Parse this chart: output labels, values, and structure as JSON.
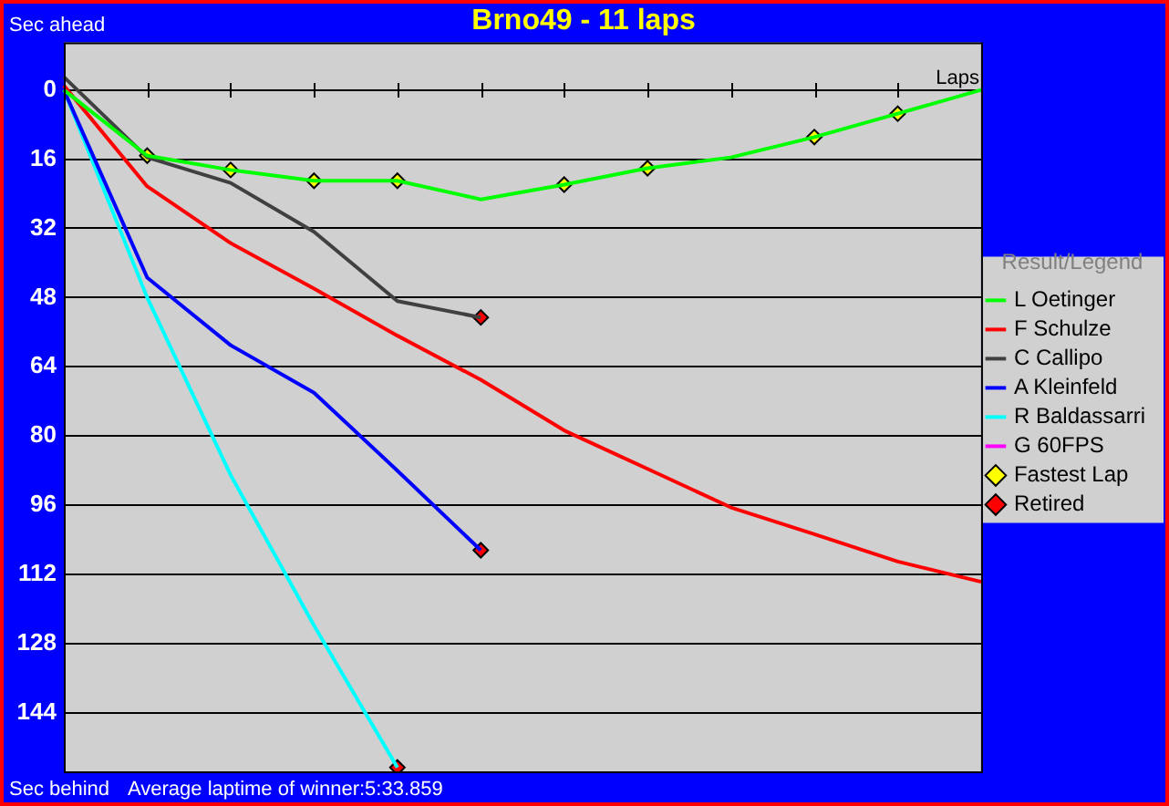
{
  "chart_data": {
    "type": "line",
    "title": "Brno49 - 11 laps",
    "xlabel": "Laps",
    "legend_title": "Result/Legend",
    "annotations": [
      "Sec ahead",
      "Sec behind",
      "Average laptime of winner:5:33.859"
    ],
    "categories": [
      null,
      null,
      null,
      null,
      null,
      null,
      null,
      null,
      null,
      null,
      null,
      null
    ],
    "ylim": [
      157.5,
      -11
    ],
    "yticks": [
      0,
      16,
      32,
      48,
      64,
      80,
      96,
      112,
      128,
      144
    ],
    "grid": "y",
    "legend": "right",
    "tick_labels": "y",
    "series": [
      {
        "name": "L Oetinger",
        "color": "#00ff00",
        "marker": "none",
        "values": [
          0,
          15.2,
          18.5,
          21,
          21,
          25.3,
          21.9,
          18.1,
          15.6,
          10.9,
          5.5,
          0
        ]
      },
      {
        "name": "F Schulze",
        "color": "#ff0000",
        "marker": "none",
        "values": [
          -1,
          22.3,
          35.4,
          45.9,
          56.8,
          67,
          78.7,
          87.6,
          96.5,
          102.7,
          109,
          113.7
        ]
      },
      {
        "name": "C Callipo",
        "color": "#404040",
        "marker": "none",
        "values": [
          -3,
          15.6,
          21.5,
          32.8,
          48.8,
          52.6,
          null,
          null,
          null,
          null,
          null,
          null
        ]
      },
      {
        "name": "A Kleinfeld",
        "color": "#0000ff",
        "marker": "none",
        "values": [
          0,
          43.4,
          59,
          70,
          88,
          106.4,
          null,
          null,
          null,
          null,
          null,
          null
        ]
      },
      {
        "name": "R Baldassarri",
        "color": "#00ffff",
        "marker": "none",
        "values": [
          0,
          48,
          89,
          123.8,
          156.6,
          null,
          null,
          null,
          null,
          null,
          null,
          null
        ]
      },
      {
        "name": "G 60FPS",
        "color": "#ff00ff",
        "marker": "none",
        "values": [
          null,
          null,
          null,
          null,
          null,
          null,
          null,
          null,
          null,
          null,
          null,
          null
        ]
      },
      {
        "name": "Fastest Lap",
        "type": "scatter",
        "color": "#ffff00",
        "marker": "diamond",
        "values": [
          null,
          15.2,
          18.5,
          21,
          21,
          null,
          21.9,
          18.1,
          null,
          10.9,
          5.5,
          null
        ]
      },
      {
        "name": "Retired",
        "type": "scatter",
        "color": "#ff0000",
        "marker": "diamond",
        "values": [
          null,
          null,
          null,
          null,
          156.6,
          52.6,
          null,
          null,
          null,
          null,
          null,
          null
        ]
      },
      {
        "type": "scatter",
        "color": "#ff0000",
        "marker": "diamond",
        "values": [
          null,
          null,
          null,
          null,
          null,
          106.4,
          null,
          null,
          null,
          null,
          null,
          null
        ]
      }
    ]
  }
}
